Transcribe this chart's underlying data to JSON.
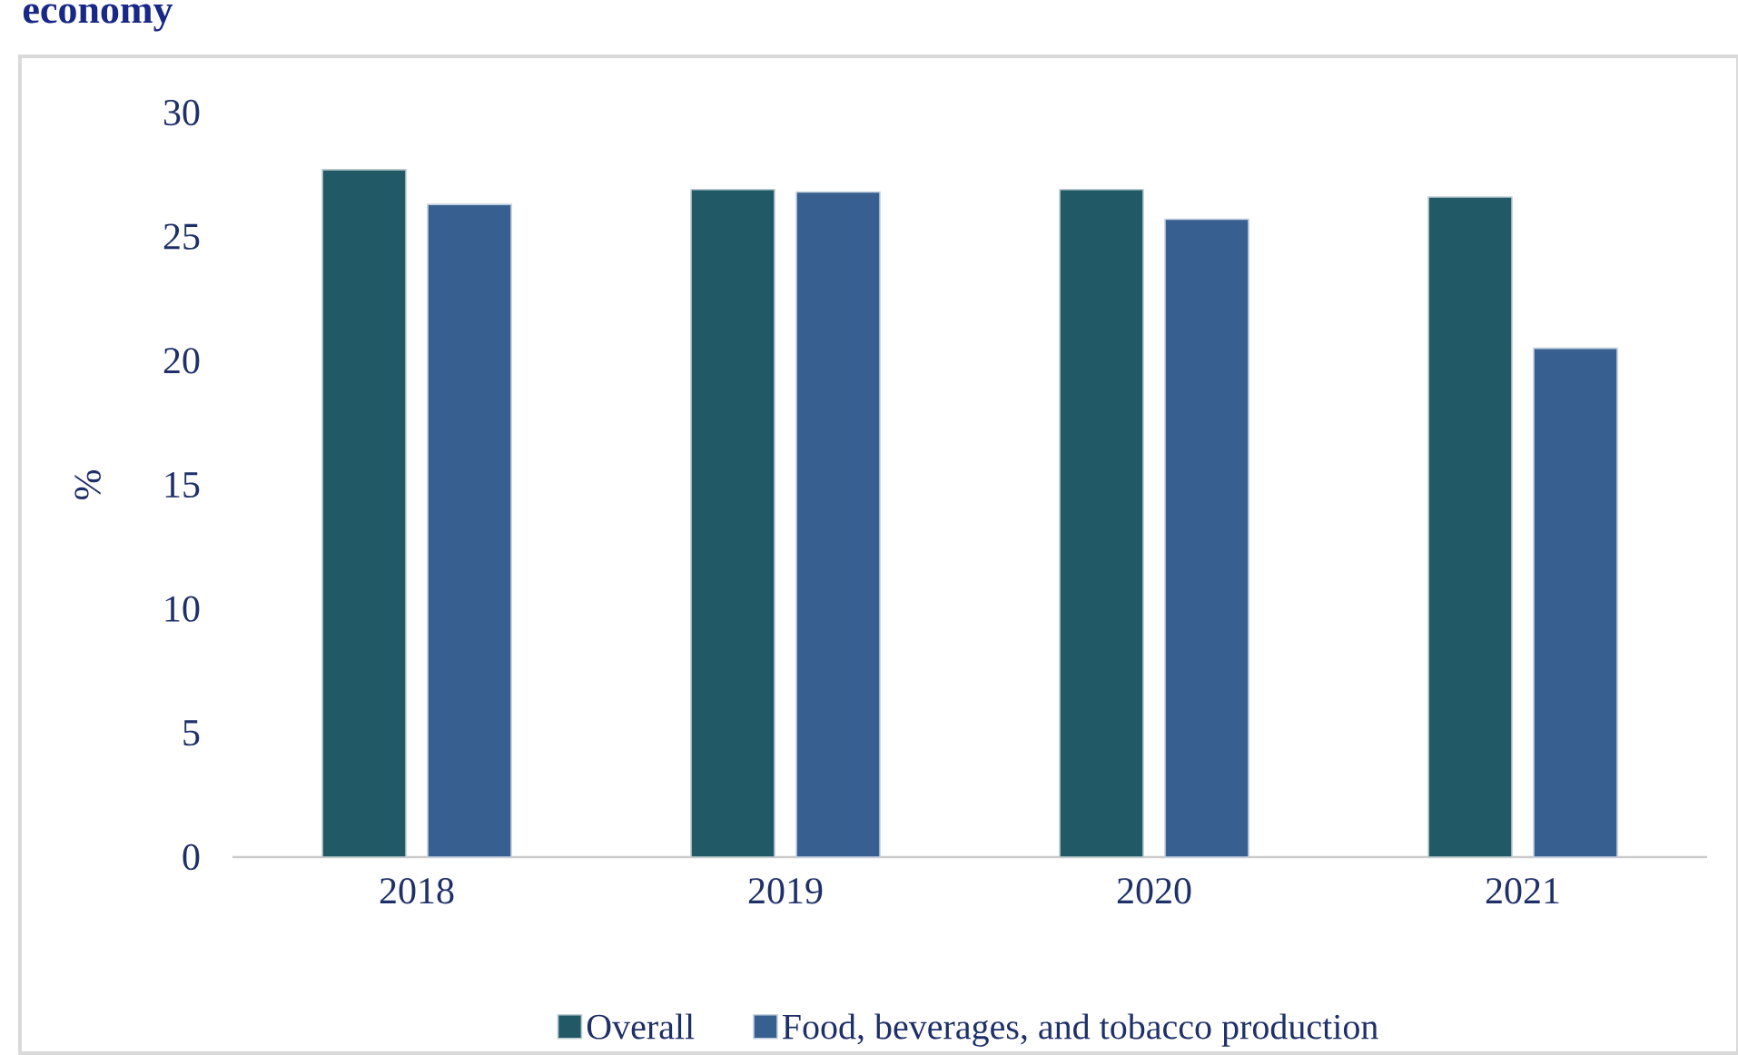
{
  "chart_data": {
    "type": "bar",
    "title": "economy",
    "ylabel": "%",
    "categories": [
      "2018",
      "2019",
      "2020",
      "2021"
    ],
    "series": [
      {
        "name": "Overall",
        "color": "#225966",
        "values": [
          27.7,
          26.9,
          26.9,
          26.6
        ]
      },
      {
        "name": "Food, beverages, and tobacco production",
        "color": "#376091",
        "values": [
          26.3,
          26.8,
          25.7,
          20.5
        ]
      }
    ],
    "ylim": [
      0,
      30
    ],
    "yticks": [
      0,
      5,
      10,
      15,
      20,
      25,
      30
    ],
    "legend": "bottom"
  }
}
